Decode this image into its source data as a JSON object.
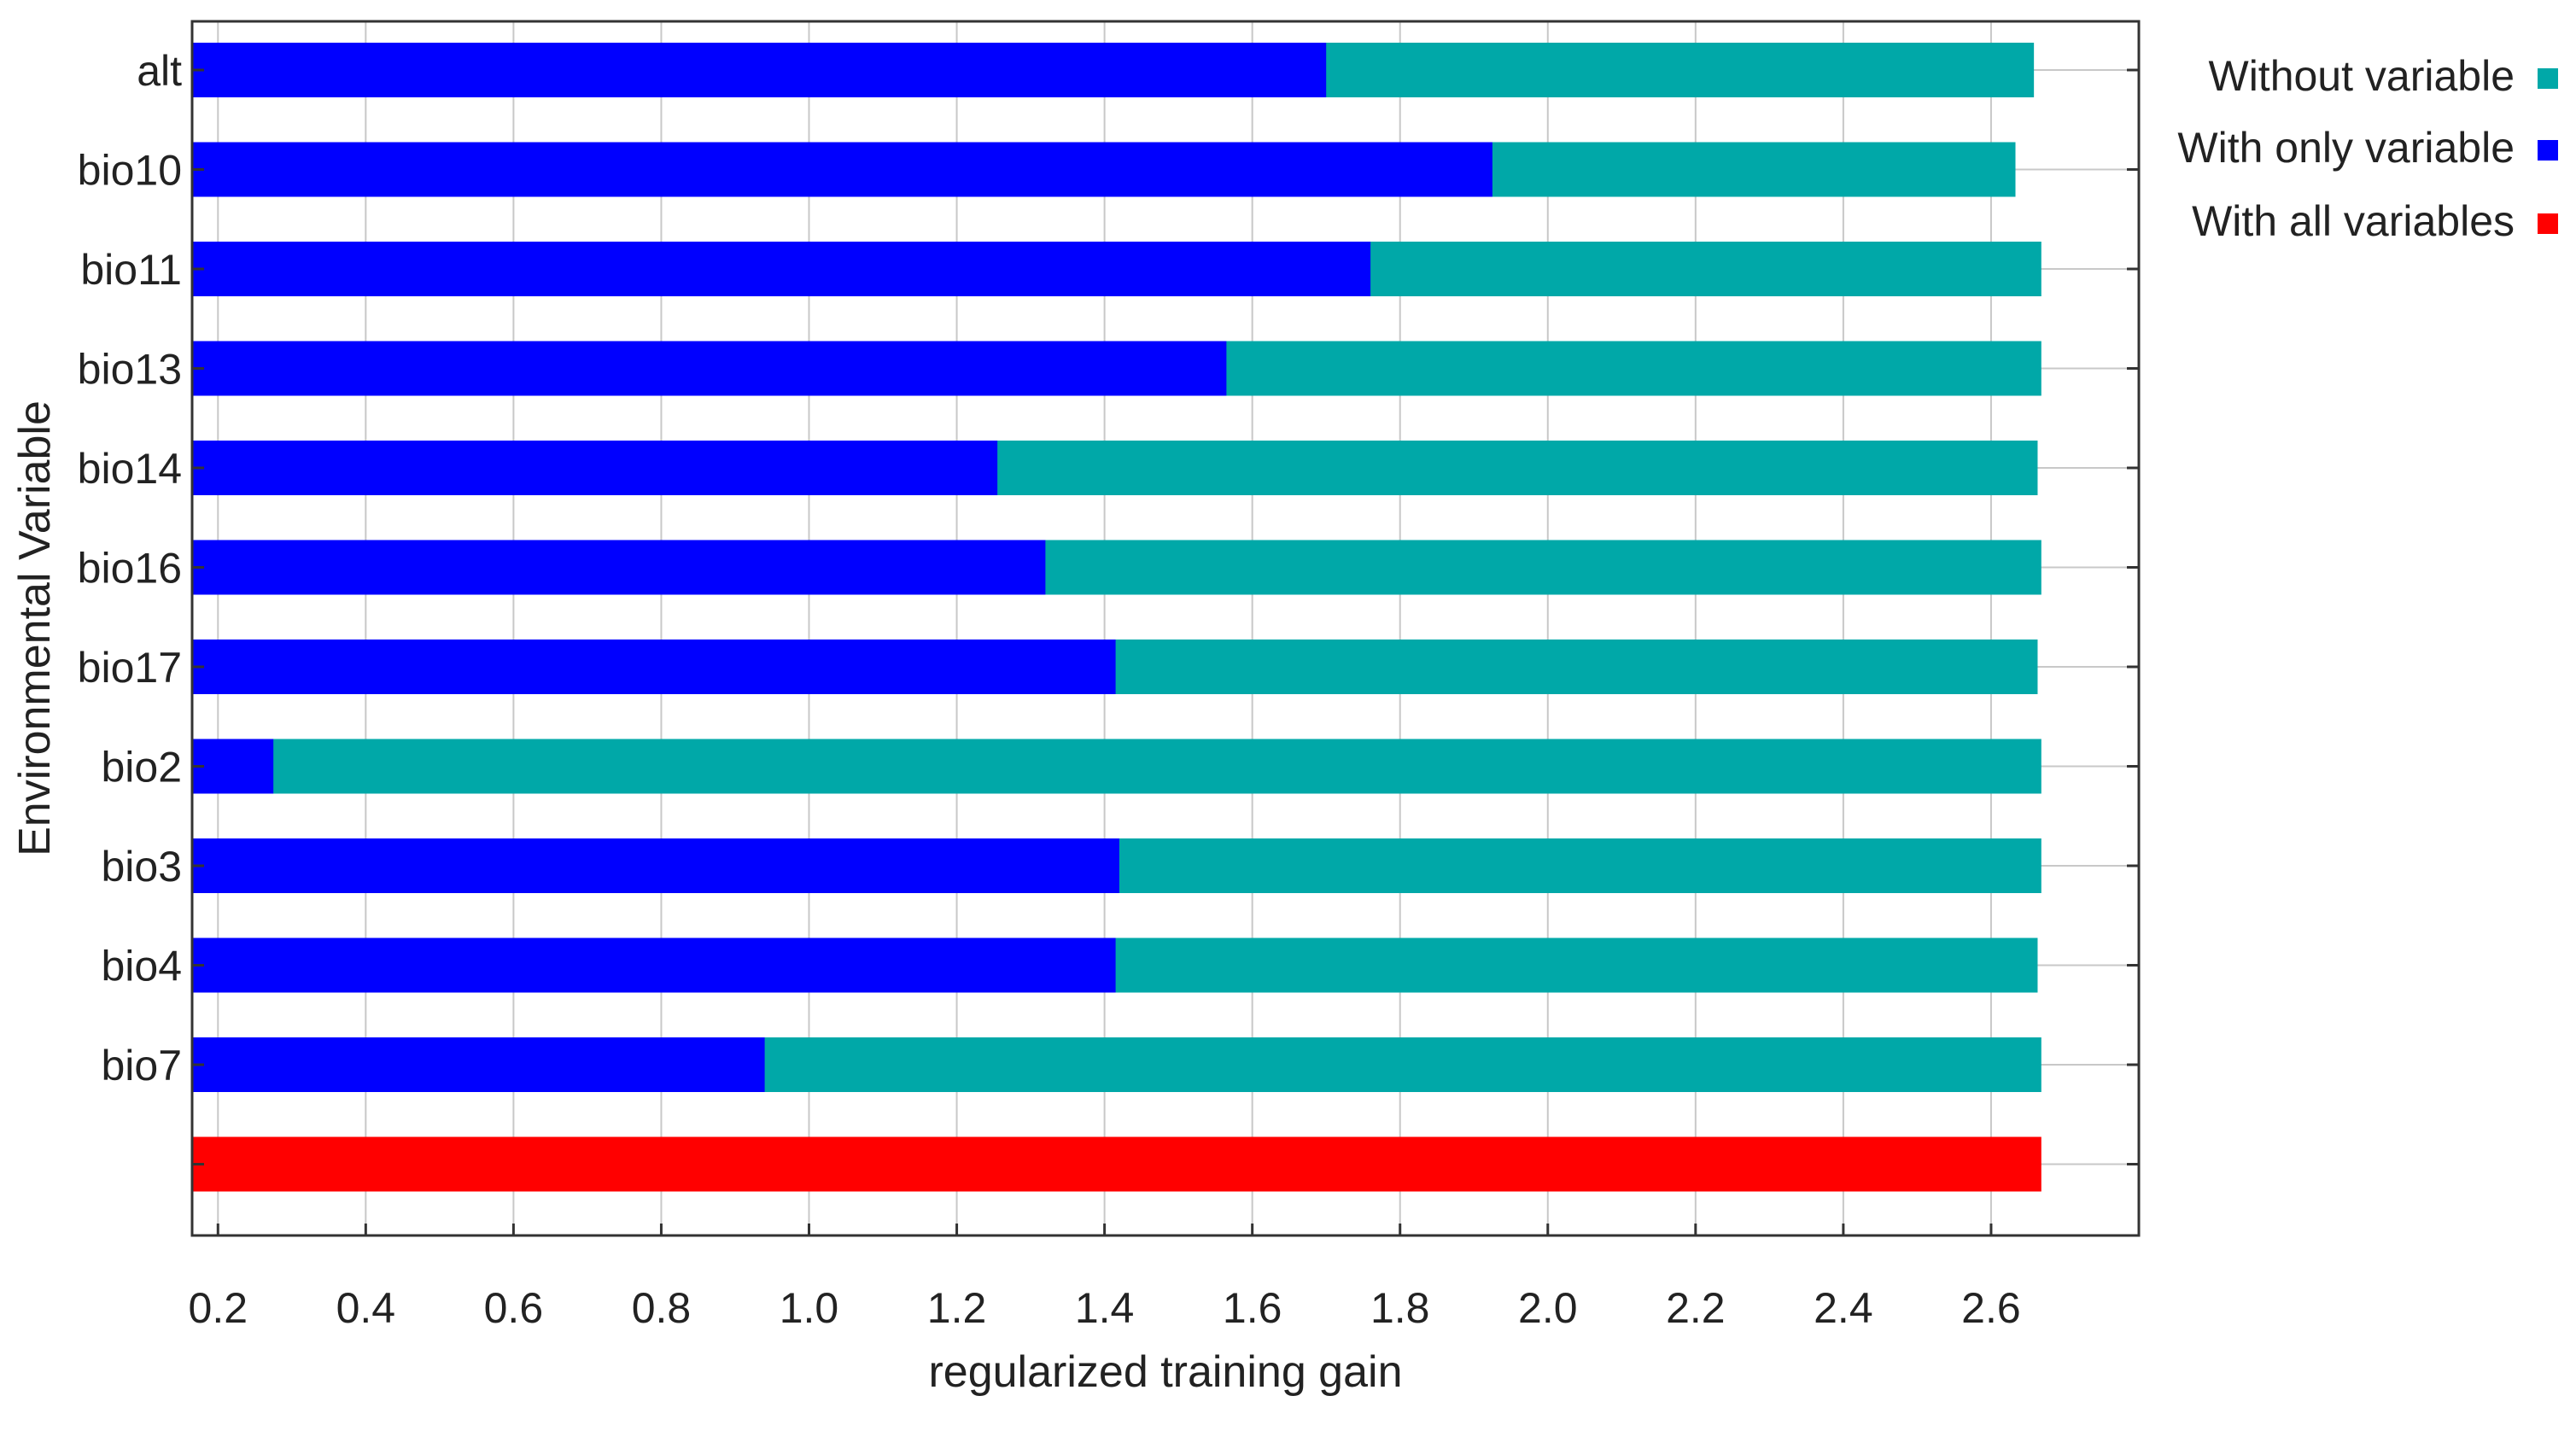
{
  "chart_data": {
    "type": "bar",
    "orientation": "horizontal",
    "stacked_overlay": true,
    "xlabel": "regularized training gain",
    "ylabel": "Environmental Variable",
    "xlim": [
      0.165,
      2.8
    ],
    "xticks": [
      "0.2",
      "0.4",
      "0.6",
      "0.8",
      "1.0",
      "1.2",
      "1.4",
      "1.6",
      "1.8",
      "2.0",
      "2.2",
      "2.4",
      "2.6"
    ],
    "grid": true,
    "legend_position": "right",
    "categories": [
      "alt",
      "bio10",
      "bio11",
      "bio13",
      "bio14",
      "bio16",
      "bio17",
      "bio2",
      "bio3",
      "bio4",
      "bio7",
      ""
    ],
    "series": [
      {
        "name": "Without variable",
        "color": "#00a8a8",
        "values": [
          2.658,
          2.633,
          2.668,
          2.668,
          2.663,
          2.668,
          2.663,
          2.668,
          2.668,
          2.663,
          2.668,
          null
        ]
      },
      {
        "name": "With only variable",
        "color": "#0000ff",
        "values": [
          1.7,
          1.925,
          1.76,
          1.565,
          1.255,
          1.32,
          1.415,
          0.275,
          1.42,
          1.415,
          0.94,
          null
        ]
      },
      {
        "name": "With all variables",
        "color": "#ff0000",
        "values": [
          null,
          null,
          null,
          null,
          null,
          null,
          null,
          null,
          null,
          null,
          null,
          2.668
        ]
      }
    ]
  }
}
